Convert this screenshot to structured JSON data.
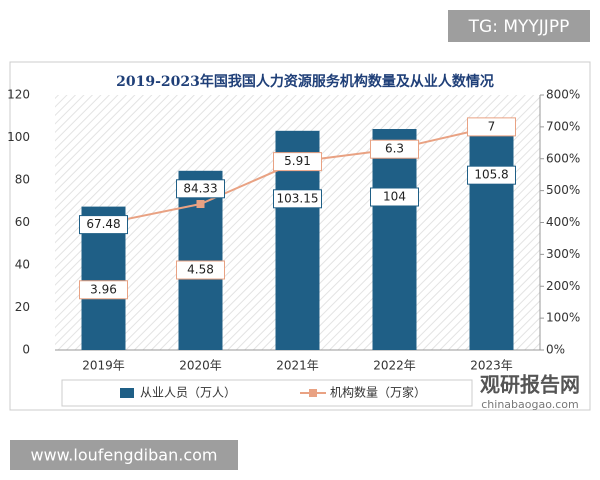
{
  "watermark_top": "TG: MYYJJPP",
  "watermark_bottom": "www.loufengdiban.com",
  "logo": {
    "name": "观研报告网",
    "url": "chinabaogao.com"
  },
  "chart_data": {
    "type": "bar",
    "title": "2019-2023年国我国人力资源服务机构数量及从业人数情况",
    "categories": [
      "2019年",
      "2020年",
      "2021年",
      "2022年",
      "2023年"
    ],
    "series": [
      {
        "name": "从业人员（万人）",
        "type": "bar",
        "color": "#1f5f86",
        "values": [
          67.48,
          84.33,
          103.15,
          104,
          105.8
        ]
      },
      {
        "name": "机构数量（万家）",
        "type": "line",
        "axis": "y2",
        "color": "#e9a283",
        "values": [
          3.96,
          4.58,
          5.91,
          6.3,
          7
        ]
      }
    ],
    "ylim": [
      0,
      120
    ],
    "yticks": [
      0,
      20,
      40,
      60,
      80,
      100,
      120
    ],
    "y2lim": [
      0,
      8
    ],
    "y2ticks": [
      {
        "value": 0,
        "label": "0%"
      },
      {
        "value": 1,
        "label": "100%"
      },
      {
        "value": 2,
        "label": "200%"
      },
      {
        "value": 3,
        "label": "300%"
      },
      {
        "value": 4,
        "label": "400%"
      },
      {
        "value": 5,
        "label": "500%"
      },
      {
        "value": 6,
        "label": "600%"
      },
      {
        "value": 7,
        "label": "700%"
      },
      {
        "value": 8,
        "label": "800%"
      }
    ],
    "legend": "bottom"
  }
}
